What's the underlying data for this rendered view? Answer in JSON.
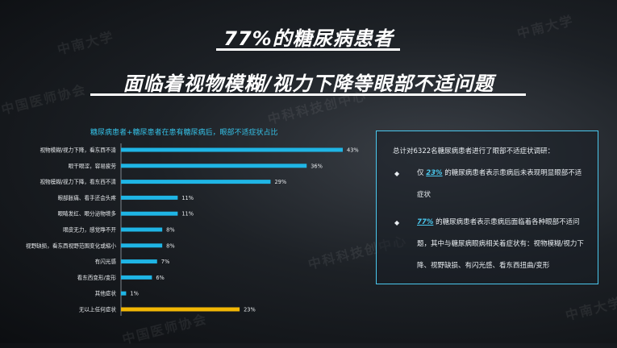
{
  "title_line1": "77%的糖尿病患者",
  "title_line2": "面临着视物模糊/视力下降等眼部不适问题",
  "watermarks": [
    "中南大学",
    "中国医师协会",
    "中科科技创中心"
  ],
  "chart_data": {
    "type": "bar",
    "orientation": "horizontal",
    "title": "糖尿病患者+糖尿患者在患有糖尿病后，眼部不适症状占比",
    "categories": [
      "视物模糊/视力下降，看东西不清",
      "眼干眼涩，容易疲劳",
      "视物模糊/视力下降，看东西不清",
      "眼部胀痛、看手还会头疼",
      "眼睛发红、眼分泌物增多",
      "眼皮无力，感觉睁不开",
      "视野缺损，看东西视野范围变化或缩小",
      "有闪光感",
      "看东西变形/变形",
      "其他症状",
      "无以上任何症状"
    ],
    "values": [
      43,
      36,
      29,
      11,
      11,
      8,
      8,
      7,
      6,
      1,
      23
    ],
    "value_labels": [
      "43%",
      "36%",
      "29%",
      "11%",
      "11%",
      "8%",
      "8%",
      "7%",
      "6%",
      "1%",
      "23%"
    ],
    "colors": [
      "#1fb5e5",
      "#1fb5e5",
      "#1fb5e5",
      "#1fb5e5",
      "#1fb5e5",
      "#1fb5e5",
      "#1fb5e5",
      "#1fb5e5",
      "#1fb5e5",
      "#1fb5e5",
      "#f2b705"
    ],
    "xlim": [
      0,
      43
    ],
    "grid": false,
    "legend": "none"
  },
  "panel": {
    "heading": "总计对6322名糖尿病患者进行了眼部不适症状调研：",
    "item1_pct": "23%",
    "item1_text": "的糖尿病患者表示患病后未表现明显眼部不适症状",
    "item1_prefix": "仅",
    "item2_pct": "77%",
    "item2_text": "的糖尿病患者表示患病后面临着各种眼部不适问题，其中与糖尿病眼病相关着症状有：视物模糊/视力下降、视野缺损、有闪光感、看东西扭曲/变形"
  },
  "colors": {
    "accent": "#1fb5e5",
    "highlight": "#f2b705",
    "panel_border": "#4ac8ee"
  }
}
